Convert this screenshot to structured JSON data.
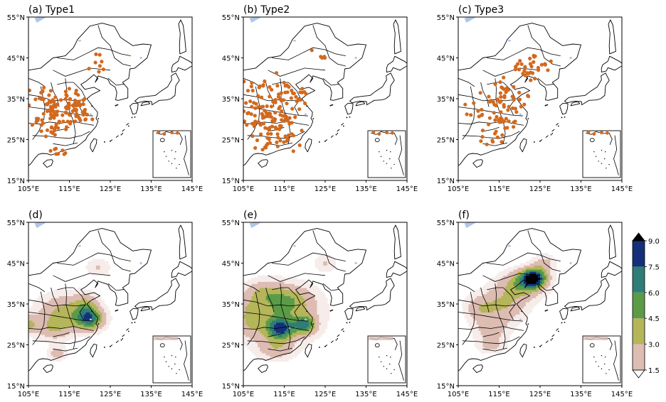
{
  "panels": [
    {
      "id": "a",
      "title": "(a) Type1",
      "kind": "stations",
      "seed": 11,
      "clusters": [
        [
          113,
          33,
          5,
          4,
          70
        ],
        [
          117,
          31,
          3,
          3,
          25
        ],
        [
          111,
          27,
          4,
          3,
          20
        ],
        [
          108,
          36,
          3,
          3,
          14
        ],
        [
          122,
          44,
          2,
          2,
          8
        ],
        [
          112,
          22,
          3,
          1,
          8
        ],
        [
          106,
          30,
          2,
          2,
          8
        ]
      ]
    },
    {
      "id": "b",
      "title": "(b) Type2",
      "kind": "stations",
      "seed": 23,
      "clusters": [
        [
          113,
          30,
          6,
          5,
          85
        ],
        [
          116,
          36,
          4,
          3,
          25
        ],
        [
          110,
          38,
          4,
          3,
          15
        ],
        [
          112,
          24,
          4,
          2,
          15
        ],
        [
          107,
          32,
          2,
          3,
          10
        ],
        [
          123,
          45,
          2,
          2,
          5
        ]
      ]
    },
    {
      "id": "c",
      "title": "(c) Type3",
      "kind": "stations",
      "seed": 37,
      "clusters": [
        [
          117,
          35,
          4,
          4,
          40
        ],
        [
          121,
          42,
          3,
          2,
          20
        ],
        [
          115,
          29,
          4,
          3,
          20
        ],
        [
          110,
          33,
          3,
          3,
          12
        ],
        [
          124,
          45,
          2,
          2,
          8
        ],
        [
          113,
          24,
          3,
          2,
          8
        ],
        [
          126,
          43,
          2,
          2,
          6
        ]
      ]
    },
    {
      "id": "d",
      "title": "(d)",
      "kind": "density",
      "blobs": [
        [
          120,
          31.5,
          2.3,
          1.8,
          6.5
        ],
        [
          114,
          33,
          4.5,
          3,
          3.5
        ],
        [
          111,
          29,
          3,
          2,
          2.2
        ],
        [
          119,
          35,
          2,
          1.8,
          2.2
        ],
        [
          112,
          23,
          1.5,
          1.2,
          2.3
        ],
        [
          105,
          30,
          1.5,
          1.5,
          3
        ],
        [
          122,
          44,
          2,
          1.5,
          1.6
        ]
      ]
    },
    {
      "id": "e",
      "title": "(e)",
      "kind": "density",
      "blobs": [
        [
          114,
          29,
          2.3,
          1.8,
          6.5
        ],
        [
          120,
          30,
          1.8,
          1.5,
          5.5
        ],
        [
          113,
          32,
          7,
          4.5,
          3
        ],
        [
          116,
          36,
          4,
          2.5,
          3
        ],
        [
          110,
          38,
          3,
          2,
          2
        ],
        [
          113,
          24,
          3,
          1.8,
          2.2
        ],
        [
          107,
          32,
          2,
          3,
          2
        ],
        [
          125,
          45,
          1.8,
          1.5,
          1.6
        ]
      ]
    },
    {
      "id": "f",
      "title": "(f)",
      "kind": "density",
      "blobs": [
        [
          123.5,
          41.5,
          2,
          1.5,
          8.5
        ],
        [
          121,
          40,
          3.5,
          2.2,
          4.5
        ],
        [
          116,
          35,
          4,
          3,
          3
        ],
        [
          113,
          29,
          3,
          2,
          2
        ],
        [
          110,
          34,
          2.5,
          2,
          2
        ],
        [
          113,
          25,
          2.5,
          1.5,
          1.8
        ],
        [
          126,
          45,
          2,
          1.5,
          2
        ]
      ]
    }
  ],
  "x_ticks": [
    "105°E",
    "115°E",
    "125°E",
    "135°E",
    "145°E"
  ],
  "y_ticks": [
    "15°N",
    "25°N",
    "35°N",
    "45°N",
    "55°N"
  ],
  "colorbar": {
    "levels": [
      "1.5",
      "3.0",
      "4.5",
      "6.0",
      "7.5",
      "9.0"
    ],
    "colors": [
      "#ddbcb2",
      "#b5b55a",
      "#5b9b48",
      "#2f7d76",
      "#15307a",
      "#050505"
    ],
    "under_color": "#ffffff",
    "over_color": "#000000"
  },
  "colors": {
    "station_marker": "#d2691e",
    "lake": "#aec7e8",
    "coastline": "#000000"
  }
}
